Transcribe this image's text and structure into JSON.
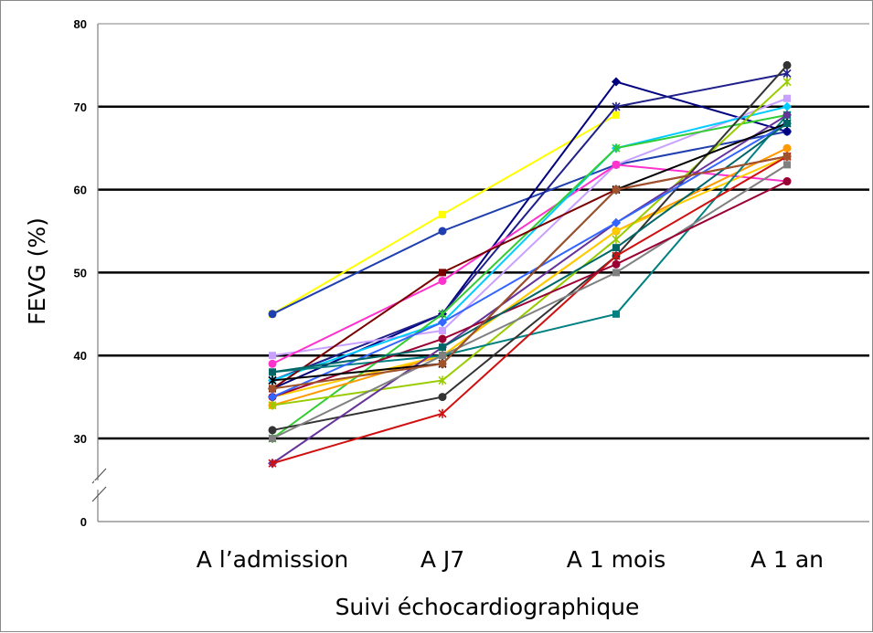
{
  "chart_data": {
    "type": "line",
    "title": "",
    "xlabel": "Suivi échocardiographique",
    "ylabel": "FEVG (%)",
    "categories": [
      "A l’admission",
      "A J7",
      "A 1 mois",
      "A 1 an"
    ],
    "y_ticks": [
      "0",
      "30",
      "40",
      "50",
      "60",
      "70",
      "80"
    ],
    "ylim": [
      25,
      80
    ],
    "y_axis_break": "below 30 (broken axis down to 0)",
    "grid": "horizontal major gridlines",
    "legend": "none",
    "series": [
      {
        "color": "#ffff00",
        "values": [
          45,
          57,
          69,
          null
        ]
      },
      {
        "color": "#1f3fb0",
        "values": [
          45,
          55,
          63,
          67
        ]
      },
      {
        "color": "#000080",
        "values": [
          36,
          45,
          73,
          67
        ]
      },
      {
        "color": "#20208a",
        "values": [
          37,
          45,
          70,
          74
        ]
      },
      {
        "color": "#c8a0ff",
        "values": [
          40,
          43,
          63,
          71
        ]
      },
      {
        "color": "#ff33cc",
        "values": [
          39,
          49,
          63,
          61
        ]
      },
      {
        "color": "#00ccff",
        "values": [
          37,
          44,
          65,
          70
        ]
      },
      {
        "color": "#33cc33",
        "values": [
          30,
          45,
          65,
          69
        ]
      },
      {
        "color": "#7a0000",
        "values": [
          36,
          50,
          60,
          64
        ]
      },
      {
        "color": "#ff9900",
        "values": [
          34,
          40,
          55,
          65
        ]
      },
      {
        "color": "#ffcc00",
        "values": [
          35,
          40,
          55,
          64
        ]
      },
      {
        "color": "#99cc00",
        "values": [
          34,
          37,
          54,
          73
        ]
      },
      {
        "color": "#008080",
        "values": [
          38,
          40,
          45,
          69
        ]
      },
      {
        "color": "#333333",
        "values": [
          31,
          35,
          52,
          75
        ]
      },
      {
        "color": "#663399",
        "values": [
          27,
          41,
          56,
          69
        ]
      },
      {
        "color": "#d01010",
        "values": [
          27,
          33,
          52,
          64
        ]
      },
      {
        "color": "#808080",
        "values": [
          30,
          40,
          50,
          63
        ]
      },
      {
        "color": "#990033",
        "values": [
          35,
          42,
          51,
          61
        ]
      },
      {
        "color": "#3366ff",
        "values": [
          35,
          44,
          56,
          68
        ]
      },
      {
        "color": "#000000",
        "values": [
          37,
          39,
          60,
          68
        ]
      },
      {
        "color": "#006666",
        "values": [
          38,
          41,
          53,
          68
        ]
      },
      {
        "color": "#a0522d",
        "values": [
          36,
          39,
          60,
          64
        ]
      }
    ]
  }
}
